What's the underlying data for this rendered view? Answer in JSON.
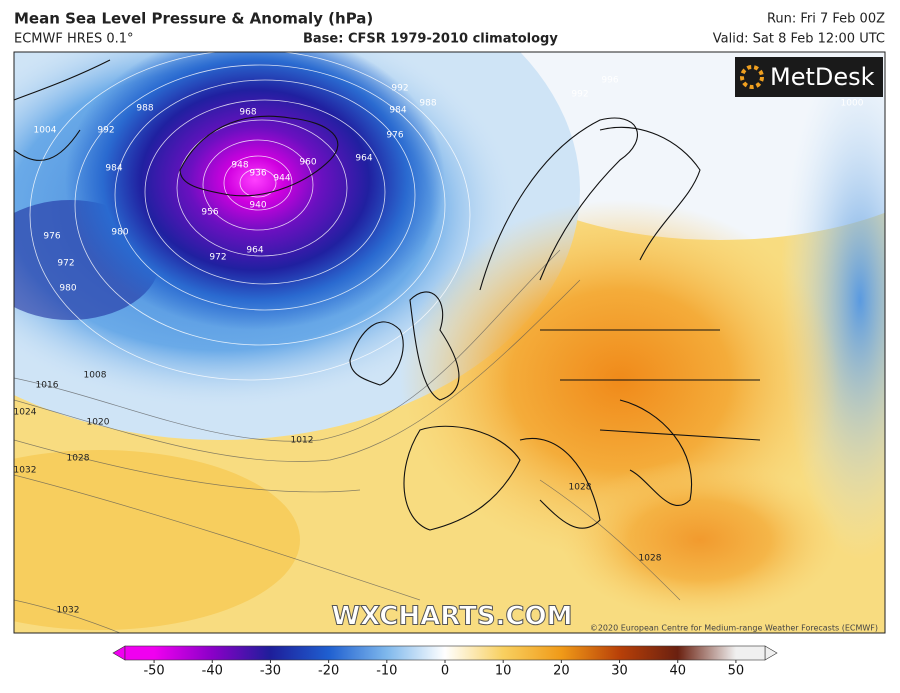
{
  "header": {
    "title": "Mean Sea Level Pressure & Anomaly (hPa)",
    "model": "ECMWF HRES 0.1°",
    "base": "Base: CFSR 1979-2010 climatology",
    "run": "Run: Fri 7 Feb 00Z",
    "valid": "Valid: Sat 8 Feb 12:00 UTC"
  },
  "logo": "MetDesk",
  "watermark": "WXCHARTS.COM",
  "copyright": "©2020 European Centre for Medium-range Weather Forecasts (ECMWF)",
  "contour_labels": [
    936,
    944,
    940,
    948,
    956,
    964,
    972,
    980,
    976,
    972,
    980,
    984,
    988,
    992,
    1004,
    968,
    960,
    964,
    976,
    984,
    992,
    988,
    992,
    996,
    1000,
    1008,
    1016,
    1020,
    1024,
    1028,
    1032,
    1012,
    1028,
    1032,
    1028
  ],
  "colorbar": {
    "range": [
      -55,
      55
    ],
    "ticks": [
      -50,
      -40,
      -30,
      -20,
      -10,
      0,
      10,
      20,
      30,
      40,
      50
    ],
    "colors": [
      "#f000f0",
      "#8a00c8",
      "#1e1e9a",
      "#1f5fd0",
      "#7fb8ec",
      "#ffffff",
      "#f8d060",
      "#f09a18",
      "#b84008",
      "#6a2010",
      "#f0f0f0"
    ]
  }
}
